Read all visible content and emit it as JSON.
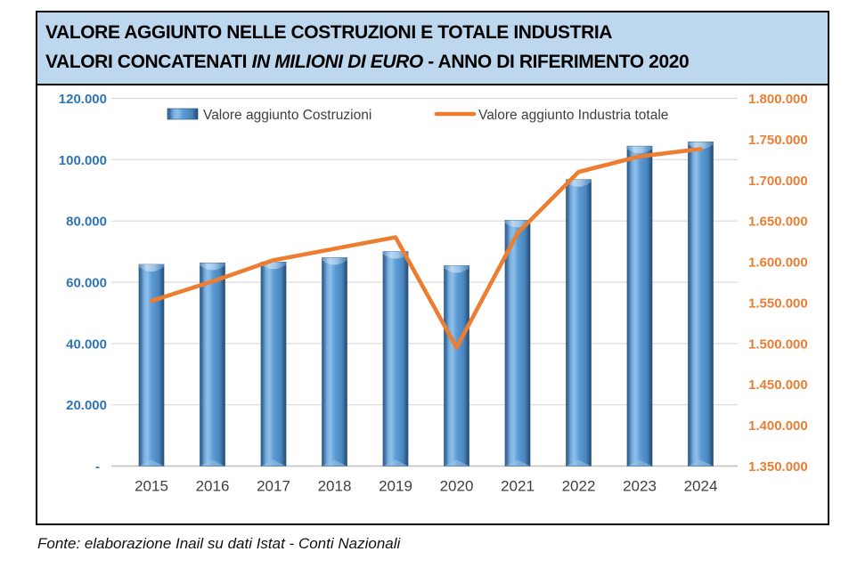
{
  "header": {
    "title_line1": "VALORE AGGIUNTO NELLE COSTRUZIONI E TOTALE INDUSTRIA",
    "title_line2_prefix": "VALORI CONCATENATI ",
    "title_line2_italic": "IN MILIONI DI EURO",
    "title_line2_suffix": " -  ANNO DI RIFERIMENTO 2020",
    "background_color": "#BDD7EE"
  },
  "footer": {
    "source": "Fonte: elaborazione Inail su dati Istat - Conti Nazionali"
  },
  "chart_data": {
    "type": "combo-bar-line",
    "categories": [
      "2015",
      "2016",
      "2017",
      "2018",
      "2019",
      "2020",
      "2021",
      "2022",
      "2023",
      "2024"
    ],
    "series": [
      {
        "name": "Valore aggiunto Costruzioni",
        "type": "bar",
        "axis": "left",
        "color": "#5B9BD5",
        "values": [
          65800,
          66300,
          66600,
          68000,
          70000,
          65400,
          80200,
          93500,
          104400,
          105800
        ]
      },
      {
        "name": "Valore aggiunto Industria totale",
        "type": "line",
        "axis": "right",
        "color": "#ED7D31",
        "values": [
          1552000,
          1576000,
          1602000,
          1616000,
          1630000,
          1495000,
          1635000,
          1710000,
          1729000,
          1738000
        ]
      }
    ],
    "left_axis": {
      "min": 0,
      "max": 120000,
      "step": 20000,
      "color": "#2E75B6",
      "zero_label": "-",
      "tick_labels": [
        "-",
        "20.000",
        "40.000",
        "60.000",
        "80.000",
        "100.000",
        "120.000"
      ]
    },
    "right_axis": {
      "min": 1350000,
      "max": 1800000,
      "step": 50000,
      "color": "#ED7D31",
      "tick_labels": [
        "1.350.000",
        "1.400.000",
        "1.450.000",
        "1.500.000",
        "1.550.000",
        "1.600.000",
        "1.650.000",
        "1.700.000",
        "1.750.000",
        "1.800.000"
      ]
    },
    "grid": true,
    "gridline_color": "#D9D9D9",
    "baseline_color": "#BFBFBF",
    "legend_position": "top"
  }
}
